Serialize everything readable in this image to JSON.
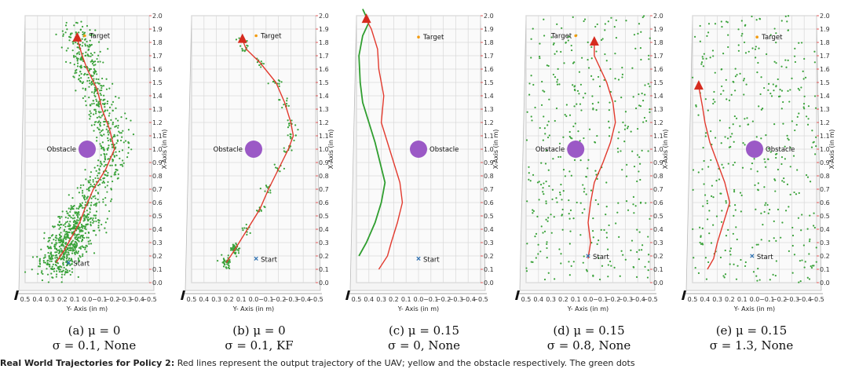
{
  "footer": {
    "bold": "Real World Trajectories for Policy 2:",
    "text": "Red lines represent the output trajectory of the UAV; yellow and the obstacle respectively. The green dots"
  },
  "chart_data": [
    {
      "type": "scatter",
      "caption_line1": "(a) μ = 0",
      "caption_line2": "σ = 0.1, None",
      "xlabel": "X-Axis (in m)",
      "ylabel": "Y- Axis (in m)",
      "xlim": [
        0.0,
        2.0
      ],
      "ylim": [
        0.5,
        -0.5
      ],
      "x_ticks": [
        "0.0",
        "0.1",
        "0.2",
        "0.3",
        "0.4",
        "0.5",
        "0.6",
        "0.7",
        "0.8",
        "0.9",
        "1.0",
        "1.1",
        "1.2",
        "1.3",
        "1.4",
        "1.5",
        "1.6",
        "1.7",
        "1.8",
        "1.9",
        "2.0"
      ],
      "y_ticks": [
        "0.5",
        "0.4",
        "0.3",
        "0.2",
        "0.1",
        "0.0",
        "−0.1",
        "−0.2",
        "−0.3",
        "−0.4",
        "−0.5"
      ],
      "target": {
        "label": "Target",
        "x": 1.85,
        "y": 0.02
      },
      "obstacle": {
        "label": "Obstacle",
        "x": 1.0,
        "y": 0.0
      },
      "start": {
        "label": "Start",
        "x": 0.15,
        "y": 0.15
      },
      "trajectory": [
        [
          0.15,
          0.25
        ],
        [
          0.25,
          0.18
        ],
        [
          0.35,
          0.12
        ],
        [
          0.45,
          0.06
        ],
        [
          0.55,
          0.02
        ],
        [
          0.7,
          -0.05
        ],
        [
          0.85,
          -0.15
        ],
        [
          1.0,
          -0.22
        ],
        [
          1.15,
          -0.18
        ],
        [
          1.3,
          -0.12
        ],
        [
          1.45,
          -0.08
        ],
        [
          1.6,
          0.0
        ],
        [
          1.7,
          0.04
        ],
        [
          1.83,
          0.08
        ]
      ],
      "uav_end": {
        "x": 1.83,
        "y": 0.08
      },
      "green_trajectory": [],
      "noise_dots": "dense-cloud"
    },
    {
      "type": "scatter",
      "caption_line1": "(b) μ = 0",
      "caption_line2": "σ = 0.1, KF",
      "xlabel": "X-Axis (in m)",
      "ylabel": "Y- Axis (in m)",
      "xlim": [
        0.0,
        2.0
      ],
      "ylim": [
        0.5,
        -0.5
      ],
      "x_ticks": [
        "0.0",
        "0.1",
        "0.2",
        "0.3",
        "0.4",
        "0.5",
        "0.6",
        "0.7",
        "0.8",
        "0.9",
        "1.0",
        "1.1",
        "1.2",
        "1.3",
        "1.4",
        "1.5",
        "1.6",
        "1.7",
        "1.8",
        "1.9",
        "2.0"
      ],
      "y_ticks": [
        "0.5",
        "0.4",
        "0.3",
        "0.2",
        "0.1",
        "0.0",
        "−0.1",
        "−0.2",
        "−0.3",
        "−0.4",
        "−0.5"
      ],
      "target": {
        "label": "Target",
        "x": 1.85,
        "y": -0.02
      },
      "obstacle": {
        "label": "Obstacle",
        "x": 1.0,
        "y": 0.0
      },
      "start": {
        "label": "Start",
        "x": 0.18,
        "y": -0.02
      },
      "trajectory": [
        [
          0.15,
          0.22
        ],
        [
          0.25,
          0.15
        ],
        [
          0.4,
          0.05
        ],
        [
          0.55,
          -0.05
        ],
        [
          0.7,
          -0.12
        ],
        [
          0.85,
          -0.2
        ],
        [
          1.0,
          -0.28
        ],
        [
          1.1,
          -0.32
        ],
        [
          1.2,
          -0.3
        ],
        [
          1.35,
          -0.25
        ],
        [
          1.5,
          -0.18
        ],
        [
          1.65,
          -0.05
        ],
        [
          1.75,
          0.06
        ],
        [
          1.82,
          0.09
        ]
      ],
      "uav_end": {
        "x": 1.82,
        "y": 0.09
      },
      "green_trajectory": [],
      "noise_dots": "kf-cluster"
    },
    {
      "type": "line",
      "caption_line1": "(c) μ = 0.15",
      "caption_line2": "σ = 0, None",
      "xlabel": "X-Axis (in m)",
      "ylabel": "Y- Axis (in m)",
      "xlim": [
        0.0,
        2.0
      ],
      "ylim": [
        0.5,
        -0.5
      ],
      "x_ticks": [
        "0.0",
        "0.1",
        "0.2",
        "0.3",
        "0.4",
        "0.5",
        "0.6",
        "0.7",
        "0.8",
        "0.9",
        "1.0",
        "1.1",
        "1.2",
        "1.3",
        "1.4",
        "1.5",
        "1.6",
        "1.7",
        "1.8",
        "1.9",
        "2.0"
      ],
      "y_ticks": [
        "0.5",
        "0.4",
        "0.3",
        "0.2",
        "0.1",
        "0.0",
        "−0.1",
        "−0.2",
        "−0.3",
        "−0.4",
        "−0.5"
      ],
      "target": {
        "label": "Target",
        "x": 1.84,
        "y": 0.0
      },
      "obstacle": {
        "label": "Obstacle",
        "x": 1.0,
        "y": 0.0
      },
      "start": {
        "label": "Start",
        "x": 0.18,
        "y": 0.0
      },
      "trajectory": [
        [
          0.1,
          0.32
        ],
        [
          0.2,
          0.25
        ],
        [
          0.3,
          0.22
        ],
        [
          0.45,
          0.17
        ],
        [
          0.6,
          0.13
        ],
        [
          0.75,
          0.15
        ],
        [
          0.9,
          0.2
        ],
        [
          1.05,
          0.25
        ],
        [
          1.2,
          0.3
        ],
        [
          1.4,
          0.28
        ],
        [
          1.6,
          0.32
        ],
        [
          1.75,
          0.33
        ],
        [
          1.9,
          0.38
        ],
        [
          1.97,
          0.42
        ]
      ],
      "uav_end": {
        "x": 1.97,
        "y": 0.42
      },
      "green_trajectory": [
        [
          0.2,
          0.48
        ],
        [
          0.3,
          0.42
        ],
        [
          0.45,
          0.35
        ],
        [
          0.6,
          0.3
        ],
        [
          0.75,
          0.27
        ],
        [
          0.9,
          0.31
        ],
        [
          1.05,
          0.35
        ],
        [
          1.2,
          0.4
        ],
        [
          1.35,
          0.45
        ],
        [
          1.5,
          0.47
        ],
        [
          1.7,
          0.48
        ],
        [
          1.85,
          0.45
        ],
        [
          1.95,
          0.4
        ],
        [
          2.05,
          0.45
        ]
      ],
      "noise_dots": "none"
    },
    {
      "type": "scatter",
      "caption_line1": "(d) μ = 0.15",
      "caption_line2": "σ = 0.8, None",
      "xlabel": "X-Axis (in m)",
      "ylabel": "Y- Axis (in m)",
      "xlim": [
        0.0,
        2.0
      ],
      "ylim": [
        0.5,
        -0.5
      ],
      "x_ticks": [
        "0.0",
        "0.1",
        "0.2",
        "0.3",
        "0.4",
        "0.5",
        "0.6",
        "0.7",
        "0.8",
        "0.9",
        "1.0",
        "1.1",
        "1.2",
        "1.3",
        "1.4",
        "1.5",
        "1.6",
        "1.7",
        "1.8",
        "1.9",
        "2.0"
      ],
      "y_ticks": [
        "0.5",
        "0.4",
        "0.3",
        "0.2",
        "0.1",
        "0.0",
        "−0.1",
        "−0.2",
        "−0.3",
        "−0.4",
        "−0.5"
      ],
      "target": {
        "label": "Target",
        "x": 1.85,
        "y": 0.1
      },
      "obstacle": {
        "label": "Obstacle",
        "x": 1.0,
        "y": 0.1
      },
      "start": {
        "label": "Start",
        "x": 0.2,
        "y": 0.0
      },
      "trajectory": [
        [
          0.18,
          0.0
        ],
        [
          0.3,
          -0.02
        ],
        [
          0.45,
          0.0
        ],
        [
          0.6,
          -0.02
        ],
        [
          0.75,
          -0.05
        ],
        [
          0.9,
          -0.12
        ],
        [
          1.05,
          -0.18
        ],
        [
          1.2,
          -0.22
        ],
        [
          1.35,
          -0.2
        ],
        [
          1.5,
          -0.15
        ],
        [
          1.6,
          -0.1
        ],
        [
          1.7,
          -0.05
        ],
        [
          1.8,
          -0.05
        ]
      ],
      "uav_end": {
        "x": 1.8,
        "y": -0.05
      },
      "green_trajectory": [],
      "noise_dots": "sparse-uniform"
    },
    {
      "type": "scatter",
      "caption_line1": "(e) μ = 0.15",
      "caption_line2": "σ = 1.3, None",
      "xlabel": "X-Axis (in m)",
      "ylabel": "Y- Axis (in m)",
      "xlim": [
        0.0,
        2.0
      ],
      "ylim": [
        0.5,
        -0.5
      ],
      "x_ticks": [
        "0.0",
        "0.1",
        "0.2",
        "0.3",
        "0.4",
        "0.5",
        "0.6",
        "0.7",
        "0.8",
        "0.9",
        "1.0",
        "1.1",
        "1.2",
        "1.3",
        "1.4",
        "1.5",
        "1.6",
        "1.7",
        "1.8",
        "1.9",
        "2.0"
      ],
      "y_ticks": [
        "0.5",
        "0.4",
        "0.3",
        "0.2",
        "0.1",
        "0.0",
        "−0.1",
        "−0.2",
        "−0.3",
        "−0.4",
        "−0.5"
      ],
      "target": {
        "label": "Target",
        "x": 1.84,
        "y": -0.02
      },
      "obstacle": {
        "label": "Obstacle",
        "x": 1.0,
        "y": 0.0
      },
      "start": {
        "label": "Start",
        "x": 0.2,
        "y": 0.02
      },
      "trajectory": [
        [
          0.1,
          0.38
        ],
        [
          0.18,
          0.33
        ],
        [
          0.3,
          0.3
        ],
        [
          0.45,
          0.25
        ],
        [
          0.6,
          0.2
        ],
        [
          0.75,
          0.24
        ],
        [
          0.9,
          0.3
        ],
        [
          1.05,
          0.36
        ],
        [
          1.2,
          0.4
        ],
        [
          1.32,
          0.42
        ],
        [
          1.42,
          0.44
        ],
        [
          1.47,
          0.45
        ]
      ],
      "uav_end": {
        "x": 1.47,
        "y": 0.45
      },
      "green_trajectory": [],
      "noise_dots": "sparse-uniform"
    }
  ]
}
